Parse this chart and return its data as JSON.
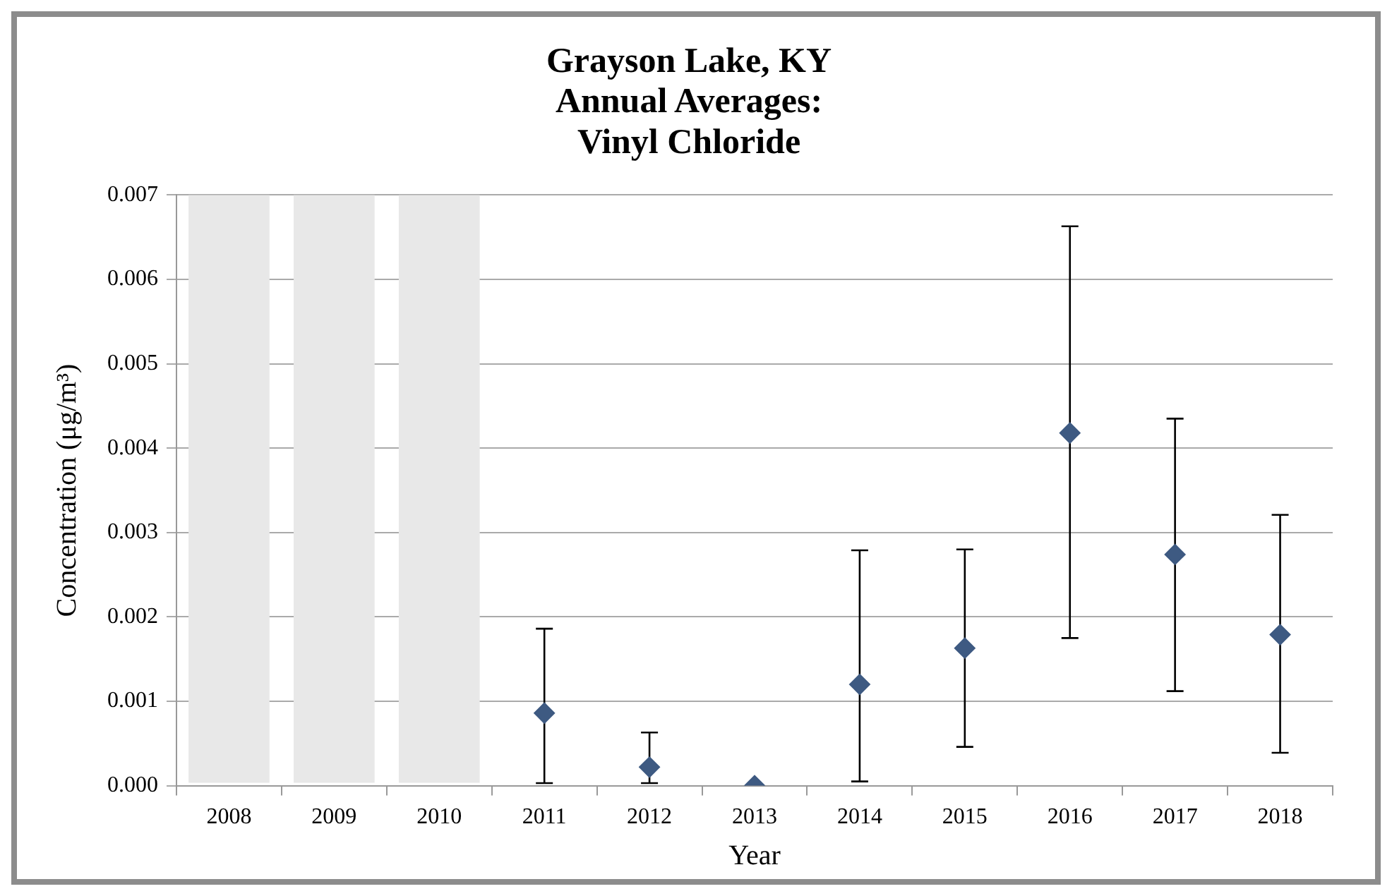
{
  "chart_data": {
    "type": "scatter",
    "title": "Grayson Lake, KY\nAnnual Averages:\nVinyl Chloride",
    "xlabel": "Year",
    "ylabel": "Concentration (μg/m³)",
    "categories": [
      "2008",
      "2009",
      "2010",
      "2011",
      "2012",
      "2013",
      "2014",
      "2015",
      "2016",
      "2017",
      "2018"
    ],
    "series": [
      {
        "color": "#3e5a82",
        "values": [
          null,
          null,
          null,
          0.00086,
          0.00022,
          0.0,
          0.0012,
          0.00163,
          0.00418,
          0.00274,
          0.00179
        ],
        "errors": [
          null,
          null,
          null,
          [
            3e-05,
            0.00186
          ],
          [
            3e-05,
            0.00063
          ],
          null,
          [
            5e-05,
            0.00279
          ],
          [
            0.00046,
            0.0028
          ],
          [
            0.00175,
            0.00663
          ],
          [
            0.00112,
            0.00435
          ],
          [
            0.00039,
            0.00321
          ]
        ]
      }
    ],
    "ylim": [
      0,
      0.007
    ],
    "yticks": [
      {
        "value": 0,
        "label": "0.000"
      },
      0.001,
      0.002,
      0.003,
      0.004,
      0.005,
      0.006,
      0.007
    ],
    "bands": [
      {
        "axis": "x",
        "from": "2008",
        "to": "2008",
        "color": "#e8e8e8"
      },
      {
        "axis": "x",
        "from": "2009",
        "to": "2009",
        "color": "#e8e8e8"
      },
      {
        "axis": "x",
        "from": "2010",
        "to": "2010",
        "color": "#e8e8e8"
      }
    ],
    "grid": "y",
    "marker": "diamond"
  }
}
